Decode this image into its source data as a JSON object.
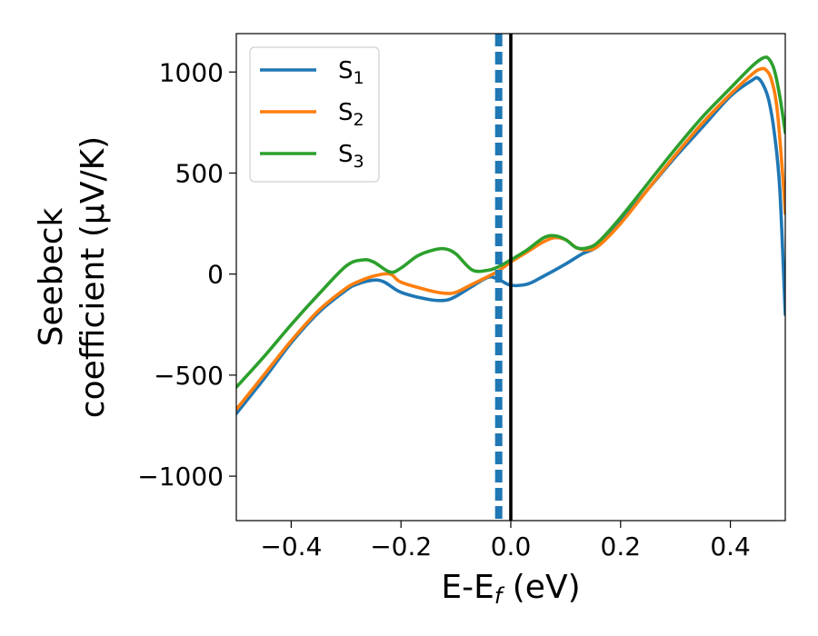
{
  "chart_data": {
    "type": "line",
    "xlabel": "E-E",
    "xlabel_sub": "f",
    "xlabel_unit": " (eV)",
    "ylabel_line1": "Seebeck",
    "ylabel_line2": "coefficient  (μV/K)",
    "xlim": [
      -0.5,
      0.5
    ],
    "ylim": [
      -1220,
      1190
    ],
    "x_ticks": [
      -0.4,
      -0.2,
      0.0,
      0.2,
      0.4
    ],
    "x_tick_labels": [
      "−0.4",
      "−0.2",
      "0.0",
      "0.2",
      "0.4"
    ],
    "y_ticks": [
      -1000,
      -500,
      0,
      500,
      1000
    ],
    "y_tick_labels": [
      "−1000",
      "−500",
      "0",
      "500",
      "1000"
    ],
    "grid": false,
    "legend_position": "top-left",
    "vertical_lines": [
      {
        "x": 0.0,
        "style": "solid",
        "color": "#000000"
      },
      {
        "x": -0.022,
        "style": "dashed",
        "color": "#1f77b4"
      }
    ],
    "series": [
      {
        "name": "S",
        "sub": "1",
        "color": "#1f77b4",
        "x": [
          -0.5,
          -0.45,
          -0.4,
          -0.35,
          -0.3,
          -0.28,
          -0.25,
          -0.23,
          -0.2,
          -0.15,
          -0.12,
          -0.1,
          -0.07,
          -0.04,
          -0.02,
          0.0,
          0.03,
          0.06,
          0.1,
          0.13,
          0.16,
          0.2,
          0.25,
          0.3,
          0.35,
          0.4,
          0.44,
          0.45,
          0.46,
          0.47,
          0.48,
          0.49,
          0.5
        ],
        "y": [
          -690,
          -520,
          -340,
          -190,
          -80,
          -50,
          -30,
          -40,
          -90,
          -125,
          -130,
          -110,
          -60,
          -15,
          -30,
          -55,
          -50,
          -10,
          50,
          100,
          140,
          260,
          420,
          580,
          730,
          880,
          960,
          970,
          935,
          860,
          700,
          420,
          -200
        ]
      },
      {
        "name": "S",
        "sub": "2",
        "color": "#ff7f0e",
        "x": [
          -0.5,
          -0.45,
          -0.4,
          -0.35,
          -0.3,
          -0.28,
          -0.25,
          -0.22,
          -0.2,
          -0.15,
          -0.12,
          -0.1,
          -0.07,
          -0.04,
          -0.02,
          0.0,
          0.03,
          0.06,
          0.08,
          0.1,
          0.12,
          0.14,
          0.16,
          0.2,
          0.25,
          0.3,
          0.35,
          0.4,
          0.44,
          0.455,
          0.465,
          0.475,
          0.485,
          0.495,
          0.5
        ],
        "y": [
          -670,
          -500,
          -330,
          -180,
          -70,
          -40,
          -10,
          0,
          -40,
          -80,
          -95,
          -90,
          -50,
          -10,
          20,
          60,
          110,
          160,
          180,
          170,
          130,
          120,
          140,
          250,
          420,
          590,
          750,
          890,
          990,
          1015,
          1010,
          960,
          820,
          500,
          300
        ]
      },
      {
        "name": "S",
        "sub": "3",
        "color": "#2ca02c",
        "x": [
          -0.5,
          -0.45,
          -0.4,
          -0.35,
          -0.3,
          -0.27,
          -0.25,
          -0.22,
          -0.2,
          -0.17,
          -0.14,
          -0.12,
          -0.1,
          -0.07,
          -0.04,
          -0.02,
          0.0,
          0.03,
          0.06,
          0.08,
          0.1,
          0.12,
          0.14,
          0.16,
          0.2,
          0.25,
          0.3,
          0.35,
          0.4,
          0.44,
          0.46,
          0.47,
          0.48,
          0.49,
          0.5
        ],
        "y": [
          -560,
          -410,
          -250,
          -100,
          40,
          70,
          60,
          10,
          30,
          90,
          120,
          125,
          100,
          20,
          20,
          40,
          70,
          120,
          180,
          190,
          170,
          130,
          130,
          160,
          280,
          450,
          620,
          780,
          920,
          1030,
          1070,
          1065,
          1010,
          880,
          700
        ]
      }
    ]
  }
}
